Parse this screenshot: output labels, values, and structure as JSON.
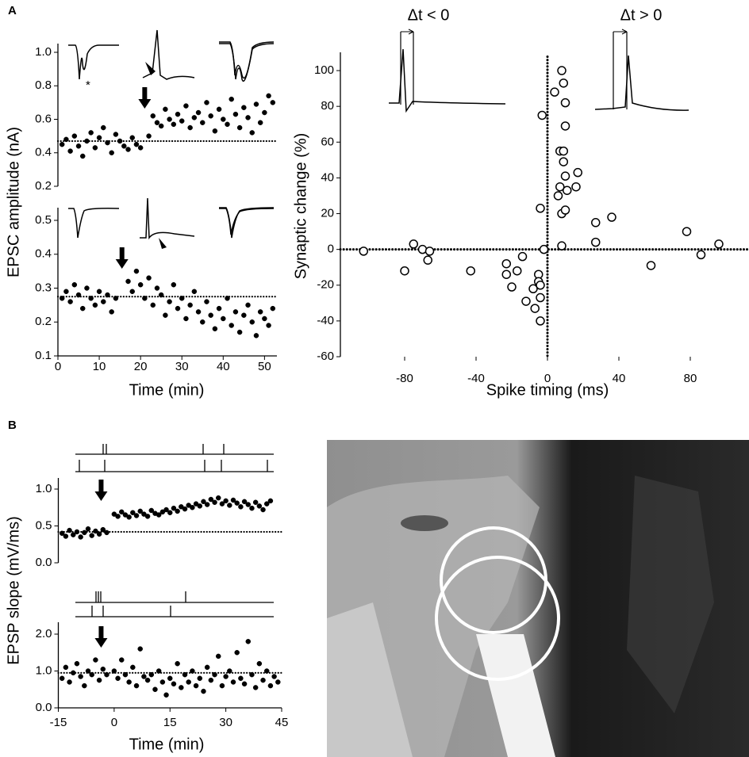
{
  "chart_data": [
    {
      "type": "scatter",
      "panel_label": "A",
      "ylabel": "EPSC amplitude (nA)",
      "annotation": "*",
      "xlim": [
        0,
        53
      ],
      "ylim": [
        0.2,
        1.0
      ],
      "yticks": [
        0.2,
        0.4,
        0.6,
        0.8,
        {
          "value": 1,
          "label": "1.0"
        }
      ],
      "marker": "filled",
      "color": "#000000",
      "baseline": 0.47,
      "arrow_x": 21,
      "x": [
        1,
        2,
        3,
        4,
        5,
        6,
        7,
        8,
        9,
        10,
        11,
        12,
        13,
        14,
        15,
        16,
        17,
        18,
        19,
        20,
        22,
        23,
        24,
        25,
        26,
        27,
        28,
        29,
        30,
        31,
        32,
        33,
        34,
        35,
        36,
        37,
        38,
        39,
        40,
        41,
        42,
        43,
        44,
        45,
        46,
        47,
        48,
        49,
        50,
        51,
        52
      ],
      "values": [
        0.45,
        0.48,
        0.41,
        0.5,
        0.44,
        0.38,
        0.47,
        0.52,
        0.43,
        0.49,
        0.55,
        0.46,
        0.4,
        0.51,
        0.47,
        0.44,
        0.42,
        0.49,
        0.45,
        0.43,
        0.5,
        0.62,
        0.58,
        0.56,
        0.66,
        0.6,
        0.57,
        0.63,
        0.59,
        0.68,
        0.55,
        0.61,
        0.64,
        0.58,
        0.7,
        0.62,
        0.53,
        0.66,
        0.6,
        0.57,
        0.72,
        0.63,
        0.55,
        0.67,
        0.61,
        0.52,
        0.69,
        0.58,
        0.64,
        0.74,
        0.7
      ]
    },
    {
      "type": "scatter",
      "xlabel": "Time (min)",
      "xlim": [
        0,
        53
      ],
      "ylim": [
        0.1,
        0.5
      ],
      "xticks": [
        0,
        10,
        20,
        30,
        40,
        50
      ],
      "yticks": [
        0.1,
        0.2,
        0.3,
        0.4,
        0.5
      ],
      "marker": "filled",
      "color": "#000000",
      "baseline": 0.275,
      "arrow_x": 15.5,
      "x": [
        1,
        2,
        3,
        4,
        5,
        6,
        7,
        8,
        9,
        10,
        11,
        12,
        13,
        14,
        17,
        18,
        19,
        20,
        21,
        22,
        23,
        24,
        25,
        26,
        27,
        28,
        29,
        30,
        31,
        32,
        33,
        34,
        35,
        36,
        37,
        38,
        39,
        40,
        41,
        42,
        43,
        44,
        45,
        46,
        47,
        48,
        49,
        50,
        51,
        52
      ],
      "values": [
        0.27,
        0.29,
        0.26,
        0.31,
        0.28,
        0.24,
        0.3,
        0.27,
        0.25,
        0.29,
        0.26,
        0.28,
        0.23,
        0.27,
        0.32,
        0.29,
        0.35,
        0.31,
        0.27,
        0.33,
        0.25,
        0.3,
        0.28,
        0.22,
        0.26,
        0.31,
        0.24,
        0.27,
        0.21,
        0.25,
        0.29,
        0.23,
        0.2,
        0.26,
        0.22,
        0.18,
        0.24,
        0.21,
        0.27,
        0.19,
        0.23,
        0.17,
        0.22,
        0.25,
        0.2,
        0.16,
        0.23,
        0.21,
        0.19,
        0.24
      ]
    },
    {
      "type": "scatter",
      "xlabel": "Spike timing (ms)",
      "ylabel": "Synaptic change (%)",
      "annotations": [
        "Δt < 0",
        "Δt > 0"
      ],
      "xlim": [
        -116,
        112
      ],
      "ylim": [
        -60,
        110
      ],
      "xticks": [
        -80,
        -40,
        0,
        40,
        80
      ],
      "yticks": [
        -60,
        -40,
        -20,
        0,
        20,
        40,
        60,
        80,
        100
      ],
      "marker": "open",
      "color": "#000000",
      "x": [
        -103,
        -80,
        -75,
        -70,
        -67,
        -66,
        -43,
        -23,
        -23,
        -20,
        -17,
        -14,
        -12,
        -8,
        -7,
        -5,
        -5,
        -4,
        -4,
        -4,
        -3,
        -4,
        -2,
        4,
        6,
        7,
        7,
        8,
        8,
        8,
        9,
        9,
        9,
        10,
        10,
        10,
        10,
        11,
        17,
        16,
        27,
        27,
        36,
        58,
        78,
        86,
        96
      ],
      "values": [
        -1,
        -12,
        3,
        0,
        -6,
        -1,
        -12,
        -8,
        -14,
        -21,
        -12,
        -4,
        -29,
        -22,
        -33,
        -14,
        -18,
        -40,
        -27,
        -20,
        75,
        23,
        0,
        88,
        30,
        55,
        35,
        100,
        20,
        2,
        93,
        55,
        49,
        82,
        22,
        41,
        69,
        33,
        43,
        35,
        15,
        4,
        18,
        -9,
        10,
        -3,
        3
      ]
    },
    {
      "type": "scatter",
      "panel_label": "B",
      "ylabel": "EPSP slope (mV/ms)",
      "xlim": [
        -15,
        45
      ],
      "ylim": [
        0,
        1.0
      ],
      "yticks": [
        {
          "value": 0,
          "label": "0.0"
        },
        0.5,
        {
          "value": 1,
          "label": "1.0"
        }
      ],
      "marker": "filled",
      "color": "#000000",
      "baseline": 0.42,
      "arrow_x": -3.5,
      "x": [
        -14,
        -13,
        -12,
        -11,
        -10,
        -9,
        -8,
        -7,
        -6,
        -5,
        -4,
        -3,
        -2,
        0,
        1,
        2,
        3,
        4,
        5,
        6,
        7,
        8,
        9,
        10,
        11,
        12,
        13,
        14,
        15,
        16,
        17,
        18,
        19,
        20,
        21,
        22,
        23,
        24,
        25,
        26,
        27,
        28,
        29,
        30,
        31,
        32,
        33,
        34,
        35,
        36,
        37,
        38,
        39,
        40,
        41,
        42
      ],
      "values": [
        0.4,
        0.36,
        0.44,
        0.38,
        0.42,
        0.35,
        0.41,
        0.46,
        0.37,
        0.43,
        0.39,
        0.45,
        0.41,
        0.66,
        0.63,
        0.69,
        0.65,
        0.62,
        0.68,
        0.64,
        0.7,
        0.66,
        0.63,
        0.71,
        0.67,
        0.65,
        0.69,
        0.72,
        0.68,
        0.74,
        0.7,
        0.76,
        0.73,
        0.78,
        0.75,
        0.8,
        0.77,
        0.83,
        0.79,
        0.86,
        0.82,
        0.88,
        0.8,
        0.84,
        0.78,
        0.85,
        0.81,
        0.76,
        0.83,
        0.79,
        0.74,
        0.82,
        0.77,
        0.72,
        0.8,
        0.84
      ]
    },
    {
      "type": "scatter",
      "xlabel": "Time (min)",
      "xlim": [
        -15,
        45
      ],
      "ylim": [
        0,
        2.0
      ],
      "xticks": [
        -15,
        0,
        15,
        30,
        45
      ],
      "yticks": [
        {
          "value": 0,
          "label": "0.0"
        },
        {
          "value": 1,
          "label": "1.0"
        },
        {
          "value": 2,
          "label": "2.0"
        }
      ],
      "marker": "filled",
      "color": "#000000",
      "baseline": 0.95,
      "arrow_x": -3.5,
      "x": [
        -14,
        -13,
        -12,
        -11,
        -10,
        -9,
        -8,
        -7,
        -6,
        -5,
        -4,
        -3,
        -2,
        0,
        1,
        2,
        3,
        4,
        5,
        6,
        7,
        8,
        9,
        10,
        11,
        12,
        13,
        14,
        15,
        16,
        17,
        18,
        19,
        20,
        21,
        22,
        23,
        24,
        25,
        26,
        27,
        28,
        29,
        30,
        31,
        32,
        33,
        34,
        35,
        36,
        37,
        38,
        39,
        40,
        41,
        42,
        43,
        44
      ],
      "values": [
        0.8,
        1.1,
        0.7,
        0.95,
        1.2,
        0.85,
        0.6,
        1.0,
        0.9,
        1.3,
        0.75,
        1.05,
        0.9,
        1.0,
        0.8,
        1.3,
        0.9,
        0.7,
        1.1,
        0.6,
        1.6,
        0.85,
        0.75,
        0.9,
        0.5,
        1.0,
        0.7,
        0.35,
        0.8,
        0.65,
        1.2,
        0.55,
        0.9,
        0.7,
        1.0,
        0.6,
        0.8,
        0.45,
        1.1,
        0.75,
        0.9,
        1.4,
        0.6,
        0.85,
        1.0,
        0.7,
        1.5,
        0.8,
        0.65,
        1.8,
        0.9,
        0.55,
        1.2,
        0.75,
        1.0,
        0.6,
        0.85,
        0.7
      ]
    }
  ]
}
